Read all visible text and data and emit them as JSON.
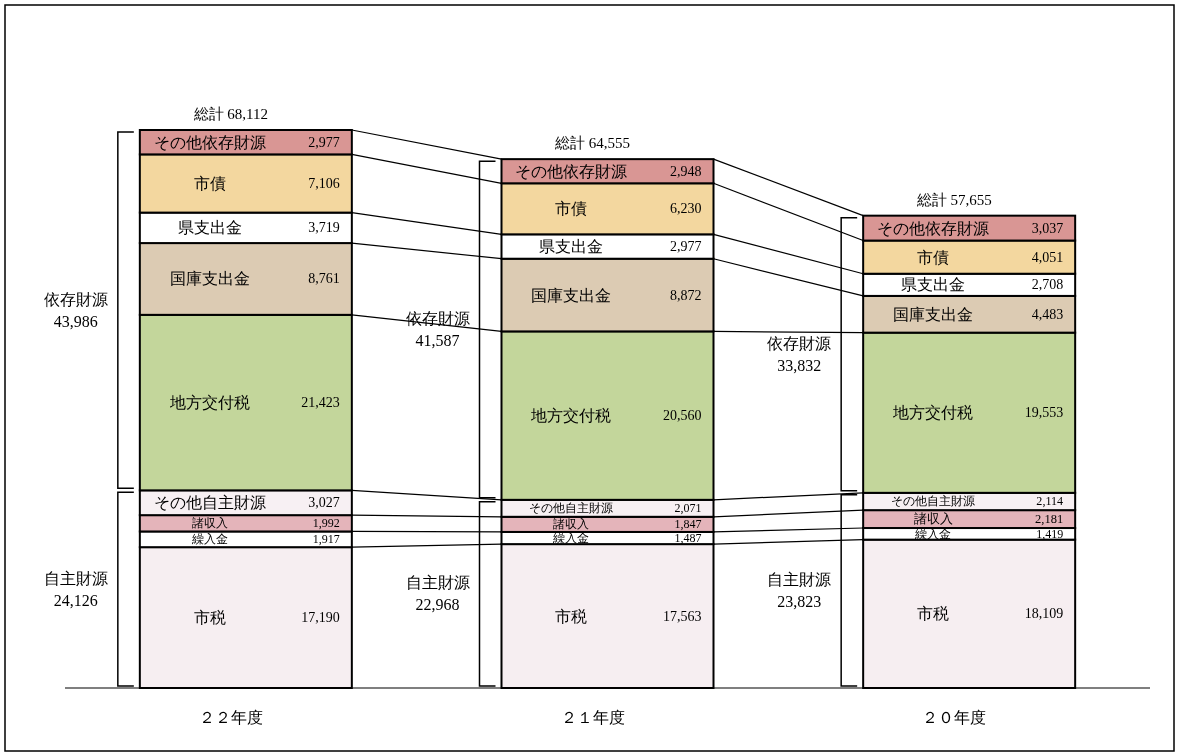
{
  "chart_data": {
    "type": "bar",
    "stacked": true,
    "legend": false,
    "categories": [
      "２２年度",
      "２１年度",
      "２０年度"
    ],
    "series": [
      {
        "name": "市税",
        "color": "#f6eef1",
        "values": [
          17190,
          17563,
          18109
        ],
        "value_labels": [
          "17,190",
          "17,563",
          "18,109"
        ]
      },
      {
        "name": "繰入金",
        "color": "#ffffff",
        "values": [
          1917,
          1487,
          1419
        ],
        "value_labels": [
          "1,917",
          "1,487",
          "1,419"
        ]
      },
      {
        "name": "諸収入",
        "color": "#e4b4ba",
        "values": [
          1992,
          1847,
          2181
        ],
        "value_labels": [
          "1,992",
          "1,847",
          "2,181"
        ]
      },
      {
        "name": "その他自主財源",
        "color": "#f7f0f3",
        "values": [
          3027,
          2071,
          2114
        ],
        "value_labels": [
          "3,027",
          "2,071",
          "2,114"
        ]
      },
      {
        "name": "地方交付税",
        "color": "#c3d69b",
        "values": [
          21423,
          20560,
          19553
        ],
        "value_labels": [
          "21,423",
          "20,560",
          "19,553"
        ]
      },
      {
        "name": "国庫支出金",
        "color": "#dccbb3",
        "values": [
          8761,
          8872,
          4483
        ],
        "value_labels": [
          "8,761",
          "8,872",
          "4,483"
        ]
      },
      {
        "name": "県支出金",
        "color": "#ffffff",
        "values": [
          3719,
          2977,
          2708
        ],
        "value_labels": [
          "3,719",
          "2,977",
          "2,708"
        ]
      },
      {
        "name": "市債",
        "color": "#f3d79f",
        "values": [
          7106,
          6230,
          4051
        ],
        "value_labels": [
          "7,106",
          "6,230",
          "4,051"
        ]
      },
      {
        "name": "その他依存財源",
        "color": "#d99694",
        "values": [
          2977,
          2948,
          3037
        ],
        "value_labels": [
          "2,977",
          "2,948",
          "3,037"
        ]
      }
    ],
    "totals": [
      "総計 68,112",
      "総計 64,555",
      "総計 57,655"
    ],
    "annotations": [
      "自主財源 24,126",
      "依存財源 43,986",
      "自主財源 22,968",
      "依存財源 41,587",
      "自主財源 23,823",
      "依存財源 33,832"
    ]
  }
}
